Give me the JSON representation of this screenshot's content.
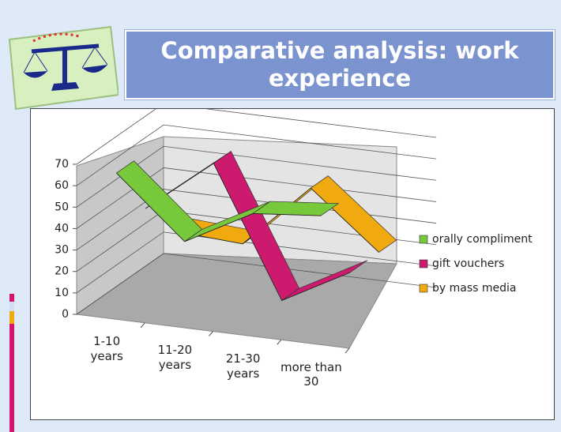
{
  "chart_data": {
    "type": "line3d",
    "title": "Comparative analysis: work experience",
    "categories": [
      "1-10 years",
      "11-20 years",
      "21-30 years",
      "more than 30"
    ],
    "series": [
      {
        "name": "orally compliment",
        "color": "#78c83c",
        "values": [
          66,
          38,
          55,
          58
        ]
      },
      {
        "name": "gift vouchers",
        "color": "#cc1a6e",
        "values": [
          40,
          65,
          5,
          22
        ]
      },
      {
        "name": "by mass media",
        "color": "#f0aa10",
        "values": [
          20,
          18,
          48,
          22
        ]
      }
    ],
    "ylim": [
      0,
      70
    ],
    "yticks": [
      0,
      10,
      20,
      30,
      40,
      50,
      60,
      70
    ],
    "grid": true,
    "legend": "right"
  }
}
